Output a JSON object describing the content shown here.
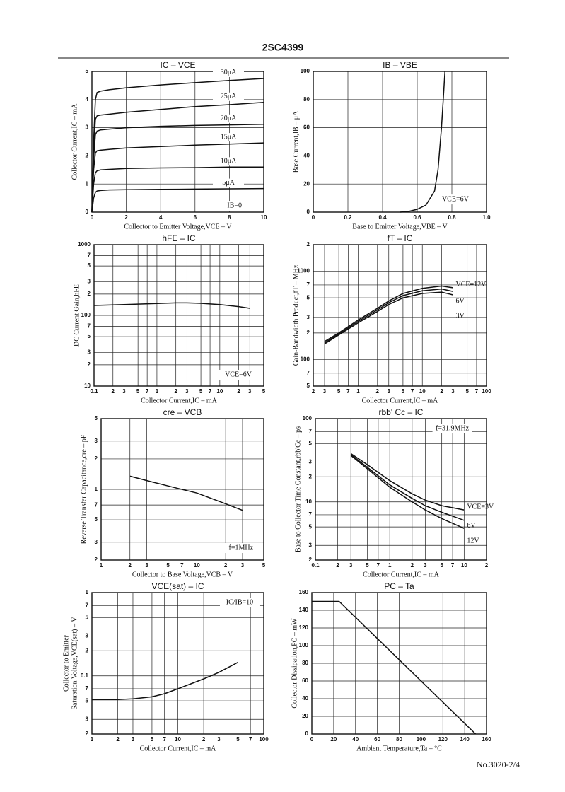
{
  "header": "2SC4399",
  "footer": "No.3020-2/4",
  "chart_data": [
    {
      "type": "line",
      "title": "IC  –  VCE",
      "xlabel": "Collector to Emitter Voltage,VCE – V",
      "ylabel": "Collector Current,IC – mA",
      "xlim": [
        0,
        10
      ],
      "xticks": [
        0,
        2,
        4,
        6,
        8,
        10
      ],
      "ylim": [
        0,
        5
      ],
      "yticks": [
        0,
        1,
        2,
        3,
        4,
        5
      ],
      "grid": true,
      "x": [
        0,
        0.1,
        0.2,
        0.3,
        0.5,
        1,
        2,
        4,
        6,
        8,
        10
      ],
      "series": [
        {
          "name": "30μA",
          "color": "#111",
          "values": [
            0,
            2.5,
            4.0,
            4.25,
            4.3,
            4.35,
            4.42,
            4.52,
            4.6,
            4.68,
            4.75
          ]
        },
        {
          "name": "25μA",
          "color": "#111",
          "values": [
            0,
            2.2,
            3.3,
            3.42,
            3.45,
            3.48,
            3.55,
            3.65,
            3.75,
            3.82,
            3.9
          ]
        },
        {
          "name": "20μA",
          "color": "#111",
          "values": [
            0,
            1.9,
            2.75,
            2.88,
            2.92,
            2.95,
            3.0,
            3.05,
            3.08,
            3.1,
            3.12
          ]
        },
        {
          "name": "15μA",
          "color": "#111",
          "values": [
            0,
            1.5,
            2.1,
            2.18,
            2.2,
            2.23,
            2.28,
            2.33,
            2.38,
            2.42,
            2.46
          ]
        },
        {
          "name": "10μA",
          "color": "#111",
          "values": [
            0,
            1.0,
            1.4,
            1.47,
            1.5,
            1.52,
            1.55,
            1.57,
            1.58,
            1.6,
            1.6
          ]
        },
        {
          "name": "5μA",
          "color": "#111",
          "values": [
            0,
            0.5,
            0.7,
            0.75,
            0.77,
            0.79,
            0.8,
            0.81,
            0.82,
            0.83,
            0.84
          ]
        }
      ],
      "annotations": [
        "IB=0"
      ]
    },
    {
      "type": "line",
      "title": "IB  –  VBE",
      "xlabel": "Base to Emitter Voltage,VBE – V",
      "ylabel": "Base Current,IB – μA",
      "xlim": [
        0,
        1.0
      ],
      "xticks": [
        0,
        0.2,
        0.4,
        0.6,
        0.8,
        {
          "value": 1.0,
          "label": "1.0"
        }
      ],
      "ylim": [
        0,
        100
      ],
      "yticks": [
        0,
        20,
        40,
        60,
        80,
        100
      ],
      "grid": true,
      "x": [
        0.5,
        0.55,
        0.6,
        0.65,
        0.7,
        0.72,
        0.74,
        0.75,
        0.76
      ],
      "series": [
        {
          "name": "VCE=6V",
          "color": "#111",
          "values": [
            0,
            0.5,
            2,
            5,
            15,
            30,
            60,
            80,
            100
          ]
        }
      ],
      "annotations": [
        "VCE=6V"
      ]
    },
    {
      "type": "line",
      "title": "hFE  –  IC",
      "xlabel": "Collector Current,IC – mA",
      "ylabel": "DC Current Gain,hFE",
      "xscale": "log",
      "yscale": "log",
      "xlim": [
        0.1,
        50
      ],
      "xticks": [
        0.1,
        {
          "value": 0.2,
          "label": "2"
        },
        {
          "value": 0.3,
          "label": "3"
        },
        {
          "value": 0.5,
          "label": "5"
        },
        {
          "value": 0.7,
          "label": "7"
        },
        1,
        2,
        3,
        5,
        7,
        10,
        {
          "value": 20,
          "label": "2"
        },
        {
          "value": 30,
          "label": "3"
        },
        {
          "value": 50,
          "label": "5"
        }
      ],
      "ylim": [
        10,
        1000
      ],
      "yticks": [
        1000,
        {
          "value": 700,
          "label": "7"
        },
        {
          "value": 500,
          "label": "5"
        },
        {
          "value": 300,
          "label": "3"
        },
        {
          "value": 200,
          "label": "2"
        },
        100,
        {
          "value": 70,
          "label": "7"
        },
        {
          "value": 50,
          "label": "5"
        },
        {
          "value": 30,
          "label": "3"
        },
        {
          "value": 20,
          "label": "2"
        },
        10
      ],
      "grid": true,
      "x": [
        0.1,
        0.3,
        1,
        2,
        3,
        5,
        10,
        20,
        30
      ],
      "series": [
        {
          "name": "VCE=6V",
          "color": "#111",
          "values": [
            138,
            142,
            147,
            150,
            150,
            148,
            142,
            133,
            126
          ]
        }
      ],
      "annotations": [
        "VCE=6V"
      ]
    },
    {
      "type": "line",
      "title": "fT  –  IC",
      "xlabel": "Collector Current,IC – mA",
      "ylabel": "Gain-Bandwidth Product,fT – MHz",
      "xscale": "log",
      "yscale": "log",
      "xlim": [
        0.2,
        100
      ],
      "xticks": [
        {
          "value": 0.2,
          "label": "2"
        },
        {
          "value": 0.3,
          "label": "3"
        },
        {
          "value": 0.5,
          "label": "5"
        },
        {
          "value": 0.7,
          "label": "7"
        },
        1,
        2,
        3,
        5,
        7,
        10,
        {
          "value": 20,
          "label": "2"
        },
        {
          "value": 30,
          "label": "3"
        },
        {
          "value": 50,
          "label": "5"
        },
        {
          "value": 70,
          "label": "7"
        },
        100
      ],
      "ylim": [
        50,
        2000
      ],
      "yticks": [
        {
          "value": 2000,
          "label": "2"
        },
        1000,
        {
          "value": 700,
          "label": "7"
        },
        {
          "value": 500,
          "label": "5"
        },
        {
          "value": 300,
          "label": "3"
        },
        {
          "value": 200,
          "label": "2"
        },
        100,
        {
          "value": 70,
          "label": "7"
        },
        {
          "value": 50,
          "label": "5"
        }
      ],
      "grid": true,
      "x": [
        0.3,
        0.5,
        1,
        2,
        3,
        5,
        10,
        20,
        30
      ],
      "series": [
        {
          "name": "VCE=12V",
          "color": "#111",
          "values": [
            160,
            200,
            280,
            380,
            460,
            560,
            640,
            680,
            650
          ]
        },
        {
          "name": "6V",
          "color": "#111",
          "values": [
            155,
            195,
            270,
            365,
            440,
            530,
            600,
            630,
            590
          ]
        },
        {
          "name": "3V",
          "color": "#111",
          "values": [
            150,
            190,
            260,
            350,
            420,
            500,
            560,
            580,
            540
          ]
        }
      ]
    },
    {
      "type": "line",
      "title": "cre  –  VCB",
      "xlabel": "Collector to Base Voltage,VCB – V",
      "ylabel": "Reverse Transfer Capacitance,cre – pF",
      "xscale": "log",
      "yscale": "log",
      "xlim": [
        1,
        50
      ],
      "xticks": [
        1,
        2,
        3,
        5,
        7,
        10,
        {
          "value": 20,
          "label": "2"
        },
        {
          "value": 30,
          "label": "3"
        },
        {
          "value": 50,
          "label": "5"
        }
      ],
      "ylim": [
        0.2,
        5
      ],
      "yticks": [
        5,
        3,
        2,
        1,
        {
          "value": 0.7,
          "label": "7"
        },
        {
          "value": 0.5,
          "label": "5"
        },
        {
          "value": 0.3,
          "label": "3"
        },
        {
          "value": 0.2,
          "label": "2"
        }
      ],
      "grid": true,
      "x": [
        2,
        3,
        5,
        10,
        20,
        30
      ],
      "series": [
        {
          "name": "f=1MHz",
          "color": "#111",
          "values": [
            1.35,
            1.22,
            1.08,
            0.92,
            0.72,
            0.62
          ]
        }
      ],
      "annotations": [
        "f=1MHz"
      ]
    },
    {
      "type": "line",
      "title": "rbb' Cc  –  IC",
      "xlabel": "Collector Current,IC – mA",
      "ylabel": "Base to Collector Time Constant,rbb'Cc – ps",
      "xscale": "log",
      "yscale": "log",
      "xlim": [
        0.1,
        20
      ],
      "xticks": [
        0.1,
        {
          "value": 0.2,
          "label": "2"
        },
        {
          "value": 0.3,
          "label": "3"
        },
        {
          "value": 0.5,
          "label": "5"
        },
        {
          "value": 0.7,
          "label": "7"
        },
        1,
        2,
        3,
        5,
        7,
        10,
        {
          "value": 20,
          "label": "2"
        }
      ],
      "ylim": [
        2,
        100
      ],
      "yticks": [
        100,
        {
          "value": 70,
          "label": "7"
        },
        {
          "value": 50,
          "label": "5"
        },
        {
          "value": 30,
          "label": "3"
        },
        {
          "value": 20,
          "label": "2"
        },
        10,
        7,
        5,
        3,
        2
      ],
      "grid": true,
      "x": [
        0.3,
        0.5,
        1,
        2,
        3,
        5,
        10
      ],
      "series": [
        {
          "name": "VCE=3V",
          "color": "#111",
          "values": [
            38,
            28,
            18,
            12.5,
            10.5,
            9,
            8
          ]
        },
        {
          "name": "6V",
          "color": "#111",
          "values": [
            37,
            26,
            16,
            11,
            9,
            7.5,
            6
          ]
        },
        {
          "name": "12V",
          "color": "#111",
          "values": [
            36,
            25,
            15,
            10,
            8,
            6.3,
            4.8
          ]
        }
      ],
      "annotations": [
        "f=31.9MHz"
      ]
    },
    {
      "type": "line",
      "title": "VCE(sat)  –  IC",
      "xlabel": "Collector Current,IC – mA",
      "ylabel": [
        "Collector to Emitter",
        "Saturation Voltage,VCE(sat) – V"
      ],
      "xscale": "log",
      "yscale": "log",
      "xlim": [
        1,
        100
      ],
      "xticks": [
        1,
        2,
        3,
        5,
        7,
        10,
        {
          "value": 20,
          "label": "2"
        },
        {
          "value": 30,
          "label": "3"
        },
        {
          "value": 50,
          "label": "5"
        },
        {
          "value": 70,
          "label": "7"
        },
        100
      ],
      "ylim": [
        0.02,
        1
      ],
      "yticks": [
        1,
        {
          "value": 0.7,
          "label": "7"
        },
        {
          "value": 0.5,
          "label": "5"
        },
        {
          "value": 0.3,
          "label": "3"
        },
        {
          "value": 0.2,
          "label": "2"
        },
        0.1,
        {
          "value": 0.07,
          "label": "7"
        },
        {
          "value": 0.05,
          "label": "5"
        },
        {
          "value": 0.03,
          "label": "3"
        },
        {
          "value": 0.02,
          "label": "2"
        }
      ],
      "grid": true,
      "x": [
        1,
        2,
        3,
        5,
        7,
        10,
        20,
        30,
        50
      ],
      "series": [
        {
          "name": "IC/IB=10",
          "color": "#111",
          "values": [
            0.052,
            0.052,
            0.053,
            0.056,
            0.061,
            0.07,
            0.092,
            0.11,
            0.145
          ]
        }
      ],
      "annotations": [
        "IC/IB=10"
      ]
    },
    {
      "type": "line",
      "title": "PC  –  Ta",
      "xlabel": "Ambient Temperature,Ta – °C",
      "ylabel": "Collector Dissipation,PC – mW",
      "xlim": [
        0,
        160
      ],
      "xticks": [
        0,
        20,
        40,
        60,
        80,
        100,
        120,
        140,
        160
      ],
      "ylim": [
        0,
        160
      ],
      "yticks": [
        0,
        20,
        40,
        60,
        80,
        100,
        120,
        140,
        160
      ],
      "grid": true,
      "x": [
        0,
        25,
        150
      ],
      "series": [
        {
          "name": "PC",
          "color": "#111",
          "values": [
            150,
            150,
            0
          ]
        }
      ]
    }
  ]
}
